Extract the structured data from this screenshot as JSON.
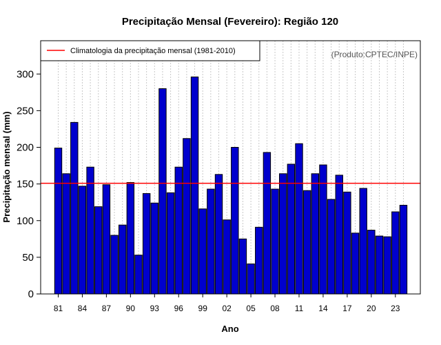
{
  "chart_data": {
    "type": "bar",
    "title": "Precipitação Mensal (Fevereiro): Região 120",
    "xlabel": "Ano",
    "ylabel": "Precipitação mensal (mm)",
    "ylim": [
      0,
      340
    ],
    "yticks": [
      0,
      50,
      100,
      150,
      200,
      250,
      300
    ],
    "grid": "vertical dotted",
    "categories": [
      "1981",
      "1982",
      "1983",
      "1984",
      "1985",
      "1986",
      "1987",
      "1988",
      "1989",
      "1990",
      "1991",
      "1992",
      "1993",
      "1994",
      "1995",
      "1996",
      "1997",
      "1998",
      "1999",
      "2000",
      "2001",
      "2002",
      "2003",
      "2004",
      "2005",
      "2006",
      "2007",
      "2008",
      "2009",
      "2010",
      "2011",
      "2012",
      "2013",
      "2014",
      "2015",
      "2016",
      "2017",
      "2018",
      "2019",
      "2020",
      "2021",
      "2022",
      "2023",
      "2024"
    ],
    "xtick_labels": [
      "81",
      "84",
      "87",
      "90",
      "93",
      "96",
      "99",
      "02",
      "05",
      "08",
      "11",
      "14",
      "17",
      "20",
      "23"
    ],
    "xtick_every": 3,
    "values": [
      199,
      164,
      234,
      147,
      173,
      119,
      149,
      80,
      94,
      152,
      53,
      137,
      124,
      280,
      138,
      173,
      212,
      296,
      116,
      143,
      163,
      101,
      200,
      75,
      41,
      91,
      193,
      143,
      164,
      177,
      205,
      141,
      164,
      176,
      129,
      162,
      139,
      83,
      144,
      87,
      79,
      78,
      112,
      121
    ],
    "bar_color": "#0000cd",
    "climatology": {
      "value": 151,
      "label": "Climatologia da precipitação mensal (1981-2010)",
      "color": "#ff0000"
    },
    "legend_position": "top-left",
    "source": "(Produto:CPTEC/INPE)"
  }
}
